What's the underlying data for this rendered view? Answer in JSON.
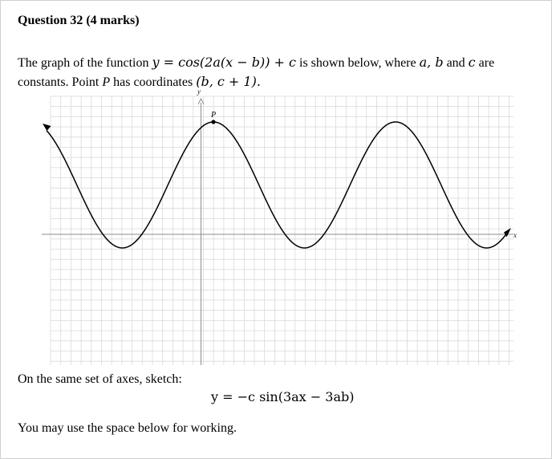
{
  "question": {
    "heading": "Question 32 (4 marks)",
    "intro_line1_prefix": "The graph of the function ",
    "function_eq": "y = cos(2a(x − b)) + c",
    "intro_line1_mid": " is shown below, where ",
    "constants": "a, b",
    "and_word": " and ",
    "last_constant": "c",
    "are_word": " are",
    "intro_line2_prefix": "constants. Point ",
    "point_name": "P",
    "intro_line2_mid": " has coordinates ",
    "point_coords": "(b, c + 1).",
    "sketch_prompt": "On the same set of axes, sketch:",
    "sketch_equation": "y = −c sin(3ax − 3ab)",
    "working_note": "You may use the space below for working."
  },
  "graph": {
    "x_axis_label": "x",
    "y_axis_label": "y",
    "point_label": "P",
    "grid_color": "#d9d9d9",
    "axis_color": "#8c8c8c",
    "curve_color": "#000000"
  }
}
